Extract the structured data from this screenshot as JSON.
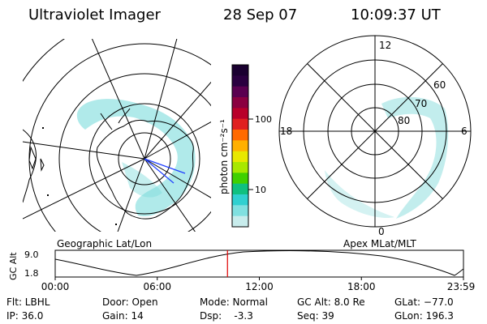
{
  "header": {
    "title": "Ultraviolet Imager",
    "date": "28 Sep 07",
    "time": "10:09:37 UT"
  },
  "colorbar": {
    "unit_label": "photon cm⁻²s⁻¹",
    "ticks": [
      "100",
      "10"
    ],
    "colors": [
      "#1a0030",
      "#2a0040",
      "#5a0050",
      "#8a0040",
      "#b8002a",
      "#e02020",
      "#ff6a00",
      "#ffb000",
      "#e8e800",
      "#a8e800",
      "#40d000",
      "#10c080",
      "#30d0d0",
      "#80e0e0",
      "#c8ecec"
    ]
  },
  "left_map": {
    "caption": "Geographic Lat/Lon",
    "aurora_color": "#6fd8d8"
  },
  "right_map": {
    "caption": "Apex MLat/MLT",
    "mlt_labels": {
      "top": "12",
      "left": "18",
      "right": "6",
      "bottom": "0"
    },
    "lat_labels": [
      "60",
      "70",
      "80"
    ],
    "aurora_color": "#8fdede"
  },
  "altitude_plot": {
    "ylabel": "GC Alt",
    "y_ticks": [
      "9.0",
      "1.8"
    ],
    "x_ticks": [
      "00:00",
      "06:00",
      "12:00",
      "18:00",
      "23:59"
    ],
    "current_time_fraction": 0.422,
    "marker_color": "#e00000"
  },
  "footer": {
    "filter": "Flt: LBHL",
    "ip": "IP: 36.0",
    "door": "Door: Open",
    "gain": "Gain: 14",
    "mode": "Mode: Normal",
    "dsp": "Dsp:    -3.3",
    "gc_alt": "GC Alt: 8.0 Re",
    "seq": "Seq: 39",
    "glat": "GLat: −77.0",
    "glon": "GLon: 196.3"
  }
}
